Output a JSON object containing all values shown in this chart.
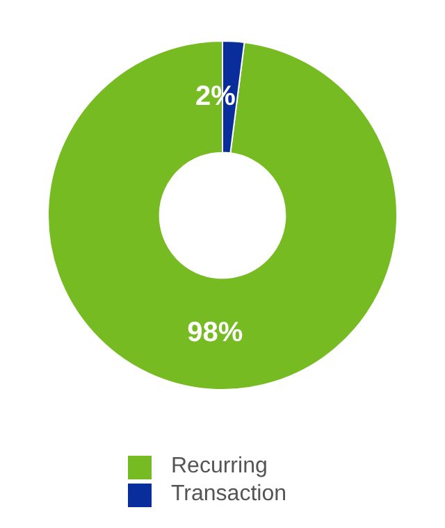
{
  "chart_data": {
    "type": "donut",
    "categories": [
      "Recurring",
      "Transaction"
    ],
    "values": [
      98,
      2
    ],
    "colors": [
      "#76bb21",
      "#0a2d9c"
    ],
    "value_labels": [
      "98%",
      "2%"
    ],
    "legend": "bottom"
  }
}
